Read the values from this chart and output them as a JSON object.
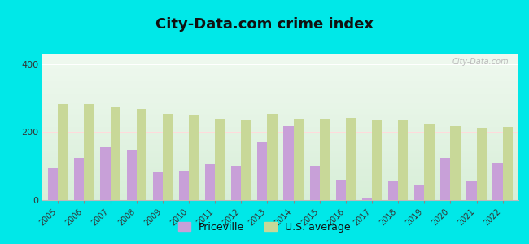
{
  "years": [
    2005,
    2006,
    2007,
    2008,
    2009,
    2010,
    2011,
    2012,
    2013,
    2014,
    2015,
    2016,
    2017,
    2018,
    2019,
    2020,
    2021,
    2022
  ],
  "priceville": [
    95,
    125,
    155,
    148,
    82,
    85,
    105,
    100,
    170,
    218,
    100,
    60,
    5,
    55,
    42,
    125,
    55,
    108
  ],
  "us_average": [
    283,
    283,
    275,
    268,
    253,
    248,
    238,
    235,
    253,
    240,
    240,
    242,
    235,
    233,
    222,
    218,
    212,
    215
  ],
  "title": "City-Data.com crime index",
  "legend_priceville": "Priceville",
  "legend_us": "U.S. average",
  "priceville_color": "#c8a0d8",
  "us_average_color": "#c8d898",
  "background_outer": "#00e8e8",
  "plot_bg_color": "#e8f5e8",
  "ylim": [
    0,
    430
  ],
  "yticks": [
    0,
    200,
    400
  ],
  "title_fontsize": 13,
  "bar_width": 0.38
}
